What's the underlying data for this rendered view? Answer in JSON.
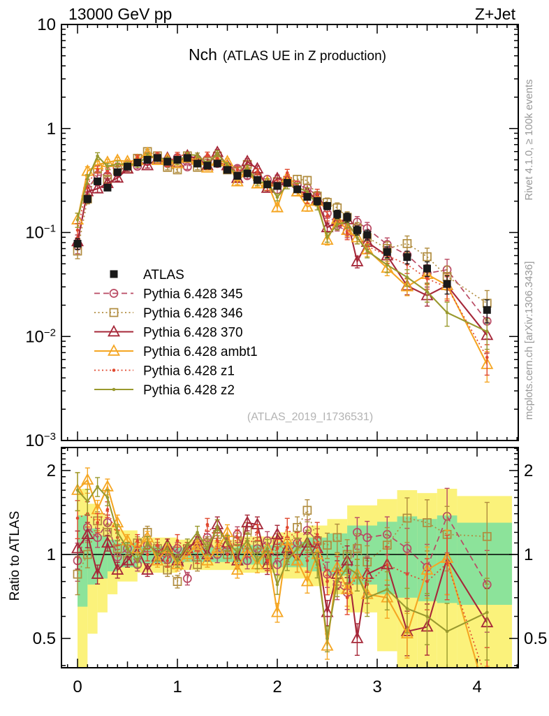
{
  "header": {
    "left": "13000 GeV pp",
    "right": "Z+Jet"
  },
  "panel_title": {
    "main": "Nch",
    "sub": "(ATLAS UE in Z production)"
  },
  "watermark": "(ATLAS_2019_I1736531)",
  "side_notes": {
    "top": "Rivet 4.1.0, ≥ 100k events",
    "bottom": "mcplots.cern.ch [arXiv:1306.3436]"
  },
  "ratio_label": "Ratio to ATLAS",
  "colors": {
    "atlas": "#1a1a1a",
    "band_yellow": "#fbf27b",
    "band_green": "#8ce39a",
    "watermark": "#b3b3b3",
    "side_note": "#999999",
    "frame": "#000000"
  },
  "chart_data": {
    "type": "line",
    "title": "Nch (ATLAS UE in Z production)",
    "xlabel": "",
    "ylabel": "",
    "yscale": "log",
    "xlim": [
      -0.161,
      4.41
    ],
    "ylim_main": [
      0.001,
      10
    ],
    "ylim_ratio": [
      0.393,
      2.417
    ],
    "xticks": [
      0,
      1,
      2,
      3,
      4
    ],
    "yticks_main_exp": [
      1,
      0,
      -1,
      -2,
      -3
    ],
    "yticks_ratio_labeled": [
      0.5,
      1,
      2
    ],
    "x": [
      0.0,
      0.1,
      0.2,
      0.3,
      0.4,
      0.5,
      0.6,
      0.7,
      0.8,
      0.9,
      1.0,
      1.1,
      1.2,
      1.3,
      1.4,
      1.5,
      1.6,
      1.7,
      1.8,
      1.9,
      2.0,
      2.1,
      2.2,
      2.3,
      2.4,
      2.5,
      2.6,
      2.7,
      2.8,
      2.9,
      3.1,
      3.3,
      3.5,
      3.7,
      4.1
    ],
    "atlas": {
      "name": "ATLAS",
      "marker": "square-filled",
      "line": "none",
      "color": "#1a1a1a",
      "values": [
        0.078,
        0.21,
        0.31,
        0.27,
        0.38,
        0.43,
        0.47,
        0.5,
        0.52,
        0.48,
        0.5,
        0.52,
        0.46,
        0.44,
        0.46,
        0.4,
        0.35,
        0.37,
        0.32,
        0.29,
        0.28,
        0.3,
        0.26,
        0.22,
        0.2,
        0.18,
        0.15,
        0.14,
        0.105,
        0.095,
        0.065,
        0.058,
        0.045,
        0.032,
        0.018
      ],
      "err_frac": [
        0.12,
        0.08,
        0.06,
        0.05,
        0.05,
        0.04,
        0.04,
        0.04,
        0.04,
        0.04,
        0.04,
        0.04,
        0.04,
        0.04,
        0.05,
        0.05,
        0.05,
        0.05,
        0.05,
        0.06,
        0.06,
        0.06,
        0.07,
        0.07,
        0.08,
        0.08,
        0.09,
        0.1,
        0.1,
        0.11,
        0.12,
        0.14,
        0.16,
        0.2,
        0.25
      ]
    },
    "series": [
      {
        "name": "Pythia 6.428 345",
        "color": "#b94a63",
        "line": "dashed",
        "marker": "circle-open",
        "ratio": [
          0.95,
          1.25,
          1.15,
          1.3,
          0.98,
          1.05,
          0.92,
          1.08,
          1.02,
          0.96,
          1.05,
          0.82,
          1.1,
          1.15,
          1.0,
          1.08,
          1.18,
          0.95,
          1.05,
          1.12,
          0.92,
          1.0,
          1.1,
          1.22,
          1.12,
          0.85,
          0.78,
          0.73,
          1.2,
          1.15,
          1.18,
          1.05,
          0.9,
          1.37,
          0.78
        ]
      },
      {
        "name": "Pythia 6.428 346",
        "color": "#b08c3e",
        "line": "dotted",
        "marker": "square-open",
        "ratio": [
          0.85,
          1.0,
          1.32,
          1.2,
          1.05,
          0.95,
          1.1,
          1.2,
          1.05,
          0.88,
          0.8,
          1.05,
          0.92,
          1.1,
          1.18,
          1.0,
          1.12,
          1.22,
          1.08,
          0.95,
          1.1,
          1.02,
          1.25,
          1.44,
          1.12,
          1.08,
          1.15,
          1.0,
          1.05,
          0.94,
          1.08,
          1.35,
          1.3,
          1.18,
          1.16
        ]
      },
      {
        "name": "Pythia 6.428 370",
        "color": "#a62839",
        "line": "solid",
        "marker": "triangle-open",
        "ratio": [
          1.05,
          1.18,
          0.85,
          1.1,
          0.88,
          0.95,
          1.05,
          0.88,
          0.98,
          1.08,
          0.95,
          1.05,
          1.12,
          1.0,
          1.28,
          1.1,
          0.95,
          1.3,
          1.28,
          0.92,
          1.18,
          1.05,
          0.95,
          1.1,
          1.05,
          0.62,
          0.85,
          0.95,
          0.5,
          0.85,
          0.92,
          0.53,
          0.55,
          0.97,
          0.57
        ]
      },
      {
        "name": "Pythia 6.428 ambt1",
        "color": "#f5a623",
        "line": "solid",
        "marker": "triangle-open",
        "ratio": [
          1.7,
          1.85,
          1.45,
          1.75,
          1.3,
          1.12,
          1.05,
          1.15,
          0.95,
          1.05,
          0.92,
          1.0,
          1.08,
          0.95,
          1.05,
          1.2,
          0.88,
          1.05,
          0.92,
          1.05,
          0.62,
          1.12,
          0.95,
          0.8,
          1.0,
          0.47,
          0.9,
          0.75,
          0.85,
          0.72,
          0.7,
          0.52,
          0.88,
          0.97,
          0.3
        ]
      },
      {
        "name": "Pythia 6.428 z1",
        "color": "#e0482f",
        "line": "dotted",
        "marker": "dot",
        "ratio": [
          1.35,
          1.4,
          1.3,
          1.45,
          1.15,
          1.05,
          1.12,
          1.0,
          1.08,
          0.95,
          1.12,
          1.05,
          0.98,
          1.28,
          1.12,
          1.0,
          1.15,
          1.05,
          1.2,
          0.95,
          1.05,
          1.25,
          1.1,
          0.95,
          1.18,
          0.8,
          0.88,
          0.7,
          0.85,
          0.78,
          0.92,
          0.85,
          0.8,
          0.93,
          0.35
        ]
      },
      {
        "name": "Pythia 6.428 z2",
        "color": "#99992e",
        "line": "solid",
        "marker": "dot",
        "ratio": [
          1.7,
          1.55,
          1.75,
          1.6,
          1.2,
          1.05,
          0.95,
          1.1,
          1.0,
          1.05,
          0.95,
          1.08,
          1.2,
          1.05,
          1.25,
          1.1,
          1.02,
          1.12,
          0.95,
          1.05,
          0.78,
          0.95,
          1.05,
          1.12,
          0.92,
          0.5,
          0.8,
          0.9,
          0.85,
          0.7,
          0.75,
          0.64,
          0.6,
          0.53,
          0.62
        ]
      }
    ],
    "bands": [
      {
        "x0": 0.0,
        "x1": 0.1,
        "ylo": 0.3,
        "yhi": 1.72,
        "glo": 0.65,
        "ghi": 1.38
      },
      {
        "x0": 0.1,
        "x1": 0.2,
        "ylo": 0.52,
        "yhi": 1.52,
        "glo": 0.78,
        "ghi": 1.24
      },
      {
        "x0": 0.2,
        "x1": 0.3,
        "ylo": 0.62,
        "yhi": 1.4,
        "glo": 0.82,
        "ghi": 1.17
      },
      {
        "x0": 0.3,
        "x1": 0.4,
        "ylo": 0.72,
        "yhi": 1.3,
        "glo": 0.87,
        "ghi": 1.13
      },
      {
        "x0": 0.4,
        "x1": 0.6,
        "ylo": 0.8,
        "yhi": 1.22,
        "glo": 0.9,
        "ghi": 1.1
      },
      {
        "x0": 0.6,
        "x1": 1.0,
        "ylo": 0.86,
        "yhi": 1.15,
        "glo": 0.93,
        "ghi": 1.07
      },
      {
        "x0": 1.0,
        "x1": 1.6,
        "ylo": 0.88,
        "yhi": 1.13,
        "glo": 0.94,
        "ghi": 1.06
      },
      {
        "x0": 1.6,
        "x1": 2.0,
        "ylo": 0.86,
        "yhi": 1.16,
        "glo": 0.92,
        "ghi": 1.08
      },
      {
        "x0": 2.0,
        "x1": 2.3,
        "ylo": 0.82,
        "yhi": 1.2,
        "glo": 0.9,
        "ghi": 1.11
      },
      {
        "x0": 2.3,
        "x1": 2.5,
        "ylo": 0.77,
        "yhi": 1.27,
        "glo": 0.87,
        "ghi": 1.15
      },
      {
        "x0": 2.5,
        "x1": 2.7,
        "ylo": 0.72,
        "yhi": 1.34,
        "glo": 0.84,
        "ghi": 1.19
      },
      {
        "x0": 2.7,
        "x1": 3.0,
        "ylo": 0.62,
        "yhi": 1.5,
        "glo": 0.78,
        "ghi": 1.27
      },
      {
        "x0": 3.0,
        "x1": 3.2,
        "ylo": 0.45,
        "yhi": 1.58,
        "glo": 0.72,
        "ghi": 1.31
      },
      {
        "x0": 3.2,
        "x1": 3.4,
        "ylo": 0.35,
        "yhi": 1.7,
        "glo": 0.7,
        "ghi": 1.37
      },
      {
        "x0": 3.4,
        "x1": 3.6,
        "ylo": 0.33,
        "yhi": 1.66,
        "glo": 0.68,
        "ghi": 1.34
      },
      {
        "x0": 3.6,
        "x1": 3.8,
        "ylo": 0.33,
        "yhi": 1.72,
        "glo": 0.67,
        "ghi": 1.38
      },
      {
        "x0": 3.8,
        "x1": 4.35,
        "ylo": 0.32,
        "yhi": 1.62,
        "glo": 0.66,
        "ghi": 1.3
      }
    ]
  }
}
